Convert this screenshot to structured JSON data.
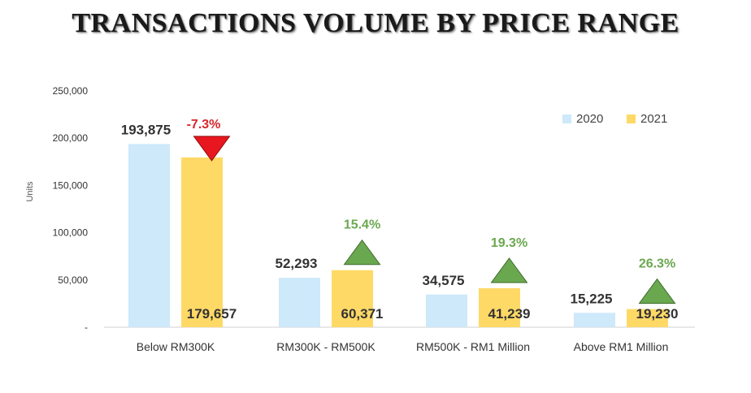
{
  "chart_data": {
    "type": "bar",
    "title": "TRANSACTIONS VOLUME BY PRICE RANGE",
    "ylabel": "Units",
    "xlabel": "",
    "ylim": [
      0,
      250000
    ],
    "yticks": [
      {
        "value": 250000,
        "label": "250,000"
      },
      {
        "value": 200000,
        "label": "200,000"
      },
      {
        "value": 150000,
        "label": "150,000"
      },
      {
        "value": 100000,
        "label": "100,000"
      },
      {
        "value": 50000,
        "label": "50,000"
      },
      {
        "value": 0,
        "label": "-"
      }
    ],
    "categories": [
      "Below RM300K",
      "RM300K - RM500K",
      "RM500K - RM1 Million",
      "Above RM1 Million"
    ],
    "series": [
      {
        "name": "2020",
        "color": "#cde9fa",
        "values": [
          193875,
          52293,
          34575,
          15225
        ],
        "labels": [
          "193,875",
          "52,293",
          "34,575",
          "15,225"
        ]
      },
      {
        "name": "2021",
        "color": "#ffd966",
        "values": [
          179657,
          60371,
          41239,
          19230
        ],
        "labels": [
          "179,657",
          "60,371",
          "41,239",
          "19,230"
        ]
      }
    ],
    "changes": [
      {
        "label": "-7.3%",
        "direction": "down",
        "color": "#d9262c",
        "marker_color": "#e8161e"
      },
      {
        "label": "15.4%",
        "direction": "up",
        "color": "#6aa84f",
        "marker_color": "#6aa84f"
      },
      {
        "label": "19.3%",
        "direction": "up",
        "color": "#6aa84f",
        "marker_color": "#6aa84f"
      },
      {
        "label": "26.3%",
        "direction": "up",
        "color": "#6aa84f",
        "marker_color": "#6aa84f"
      }
    ],
    "legend_position": "top-right",
    "grid": false
  }
}
